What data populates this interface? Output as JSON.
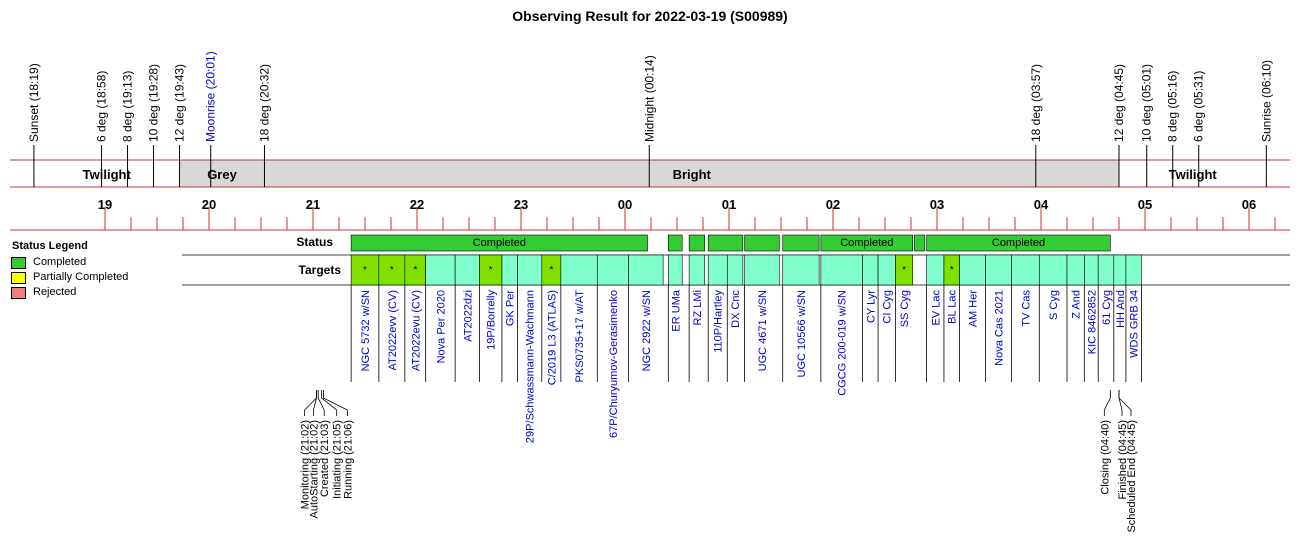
{
  "chart_data": {
    "type": "table",
    "title": "Observing Result for 2022-03-19 (S00989)",
    "colors": {
      "completed": "#33cc33",
      "target_fill": "#80ffcc",
      "target_highlight": "#80e000",
      "grey_band": "#d8d8d8",
      "rule_red": "#cc3333",
      "link_blue": "#0000cc",
      "legend_partial": "#ffff00",
      "legend_rejected": "#f08080"
    },
    "time_markers": [
      {
        "label": "Sunset (18:19)",
        "t": "18:19",
        "color": "#000000"
      },
      {
        "label": "6 deg (18:58)",
        "t": "18:58",
        "color": "#000000"
      },
      {
        "label": "8 deg (19:13)",
        "t": "19:13",
        "color": "#000000"
      },
      {
        "label": "10 deg (19:28)",
        "t": "19:28",
        "color": "#000000"
      },
      {
        "label": "12 deg (19:43)",
        "t": "19:43",
        "color": "#000000"
      },
      {
        "label": "Moonrise (20:01)",
        "t": "20:01",
        "color": "#0000cc"
      },
      {
        "label": "18 deg (20:32)",
        "t": "20:32",
        "color": "#000000"
      },
      {
        "label": "Midnight (00:14)",
        "t": "00:14",
        "color": "#000000"
      },
      {
        "label": "18 deg (03:57)",
        "t": "03:57",
        "color": "#000000"
      },
      {
        "label": "12 deg (04:45)",
        "t": "04:45",
        "color": "#000000"
      },
      {
        "label": "10 deg (05:01)",
        "t": "05:01",
        "color": "#000000"
      },
      {
        "label": "8 deg (05:16)",
        "t": "05:16",
        "color": "#000000"
      },
      {
        "label": "6 deg (05:31)",
        "t": "05:31",
        "color": "#000000"
      },
      {
        "label": "Sunrise (06:10)",
        "t": "06:10",
        "color": "#000000"
      }
    ],
    "bands": [
      {
        "label": "Twilight",
        "start": "18:19",
        "end": "19:43",
        "shade": false
      },
      {
        "label": "Grey",
        "start": "19:43",
        "end": "20:32",
        "shade": true
      },
      {
        "label": "Bright",
        "start": "20:32",
        "end": "04:45",
        "shade": true
      },
      {
        "label": "Twilight",
        "start": "04:45",
        "end": "06:10",
        "shade": false
      }
    ],
    "hour_ticks": [
      "19",
      "20",
      "21",
      "22",
      "23",
      "00",
      "01",
      "02",
      "03",
      "04",
      "05",
      "06"
    ],
    "row_labels": {
      "status": "Status",
      "targets": "Targets"
    },
    "legend": {
      "title": "Status Legend",
      "items": [
        {
          "label": "Completed",
          "color": "#33cc33"
        },
        {
          "label": "Partially Completed",
          "color": "#ffff00"
        },
        {
          "label": "Rejected",
          "color": "#f08080"
        }
      ]
    },
    "status_segments": [
      {
        "label": "Completed",
        "start": "21:22",
        "end": "00:13"
      },
      {
        "label": "",
        "start": "00:25",
        "end": "00:33"
      },
      {
        "label": "",
        "start": "00:37",
        "end": "00:46"
      },
      {
        "label": "",
        "start": "00:48",
        "end": "01:08"
      },
      {
        "label": "",
        "start": "01:09",
        "end": "01:29"
      },
      {
        "label": "",
        "start": "01:31",
        "end": "01:52"
      },
      {
        "label": "Completed",
        "start": "01:53",
        "end": "02:46"
      },
      {
        "label": "",
        "start": "02:47",
        "end": "02:53"
      },
      {
        "label": "Completed",
        "start": "02:54",
        "end": "04:40"
      }
    ],
    "targets": [
      {
        "name": "NGC 5732 w/SN",
        "start": "21:22",
        "end": "21:38",
        "mark": "*",
        "highlight": true
      },
      {
        "name": "AT2022evv (CV)",
        "start": "21:38",
        "end": "21:53",
        "mark": "*",
        "highlight": true
      },
      {
        "name": "AT2022evu (CV)",
        "start": "21:53",
        "end": "22:05",
        "mark": "*",
        "highlight": true
      },
      {
        "name": "Nova Per 2020",
        "start": "22:05",
        "end": "22:22",
        "mark": "",
        "highlight": false
      },
      {
        "name": "AT2022dzi",
        "start": "22:22",
        "end": "22:36",
        "mark": "",
        "highlight": false
      },
      {
        "name": "19P/Borrelly",
        "start": "22:36",
        "end": "22:49",
        "mark": "*",
        "highlight": true
      },
      {
        "name": "GK Per",
        "start": "22:49",
        "end": "22:58",
        "mark": "",
        "highlight": false
      },
      {
        "name": "29P/Schwassmann-Wachmann",
        "start": "22:58",
        "end": "23:12",
        "mark": "",
        "highlight": false
      },
      {
        "name": "C/2019 L3 (ATLAS)",
        "start": "23:12",
        "end": "23:23",
        "mark": "*",
        "highlight": true
      },
      {
        "name": "PKS0735+17 w/AT",
        "start": "23:23",
        "end": "23:44",
        "mark": "",
        "highlight": false
      },
      {
        "name": "67P/Churyumov-Gerasimenko",
        "start": "23:44",
        "end": "24:02",
        "mark": "",
        "highlight": false
      },
      {
        "name": "NGC 2922 w/SN",
        "start": "24:02",
        "end": "24:22",
        "mark": "",
        "highlight": false
      },
      {
        "name": "ER UMa",
        "start": "24:25",
        "end": "24:33",
        "mark": "",
        "highlight": false
      },
      {
        "name": "RZ LMi",
        "start": "24:37",
        "end": "24:46",
        "mark": "",
        "highlight": false
      },
      {
        "name": "110P/Hartley",
        "start": "24:48",
        "end": "24:59",
        "mark": "",
        "highlight": false
      },
      {
        "name": "DX Cnc",
        "start": "24:59",
        "end": "25:08",
        "mark": "",
        "highlight": false
      },
      {
        "name": "UGC 4671 w/SN",
        "start": "25:09",
        "end": "25:29",
        "mark": "",
        "highlight": false
      },
      {
        "name": "UGC 10566 w/SN",
        "start": "25:31",
        "end": "25:52",
        "mark": "",
        "highlight": false
      },
      {
        "name": "CGCG 200-019 w/SN",
        "start": "25:53",
        "end": "26:17",
        "mark": "",
        "highlight": false
      },
      {
        "name": "CY Lyr",
        "start": "26:17",
        "end": "26:26",
        "mark": "",
        "highlight": false
      },
      {
        "name": "CI Cyg",
        "start": "26:26",
        "end": "26:36",
        "mark": "",
        "highlight": false
      },
      {
        "name": "SS Cyg",
        "start": "26:36",
        "end": "26:46",
        "mark": "*",
        "highlight": true
      },
      {
        "name": "EV Lac",
        "start": "26:54",
        "end": "27:04",
        "mark": "",
        "highlight": false
      },
      {
        "name": "BL Lac",
        "start": "27:04",
        "end": "27:13",
        "mark": "*",
        "highlight": true
      },
      {
        "name": "AM Her",
        "start": "27:13",
        "end": "27:28",
        "mark": "",
        "highlight": false
      },
      {
        "name": "Nova Cas 2021",
        "start": "27:28",
        "end": "27:43",
        "mark": "",
        "highlight": false
      },
      {
        "name": "TV Cas",
        "start": "27:43",
        "end": "27:59",
        "mark": "",
        "highlight": false
      },
      {
        "name": "S Cyg",
        "start": "27:59",
        "end": "28:15",
        "mark": "",
        "highlight": false
      },
      {
        "name": "Z And",
        "start": "28:15",
        "end": "28:25",
        "mark": "",
        "highlight": false
      },
      {
        "name": "KIC 8462852",
        "start": "28:25",
        "end": "28:33",
        "mark": "",
        "highlight": false
      },
      {
        "name": "61 Cyg",
        "start": "28:33",
        "end": "28:42",
        "mark": "",
        "highlight": false
      },
      {
        "name": "HH And",
        "start": "28:42",
        "end": "28:49",
        "mark": "",
        "highlight": false
      },
      {
        "name": "WDS GRB 34",
        "start": "28:49",
        "end": "28:58",
        "mark": "",
        "highlight": false
      }
    ],
    "events_left": [
      {
        "label": "Monitoring (21:02)",
        "t": "21:02"
      },
      {
        "label": "AutoStarting (21:02)",
        "t": "21:02"
      },
      {
        "label": "Created (21:03)",
        "t": "21:03"
      },
      {
        "label": "Initiating (21:05)",
        "t": "21:05"
      },
      {
        "label": "Running (21:06)",
        "t": "21:06"
      }
    ],
    "events_right": [
      {
        "label": "Closing (04:40)",
        "t": "04:40"
      },
      {
        "label": "Finished (04:45)",
        "t": "04:45"
      },
      {
        "label": "Scheduled End (04:45)",
        "t": "04:45"
      }
    ]
  }
}
